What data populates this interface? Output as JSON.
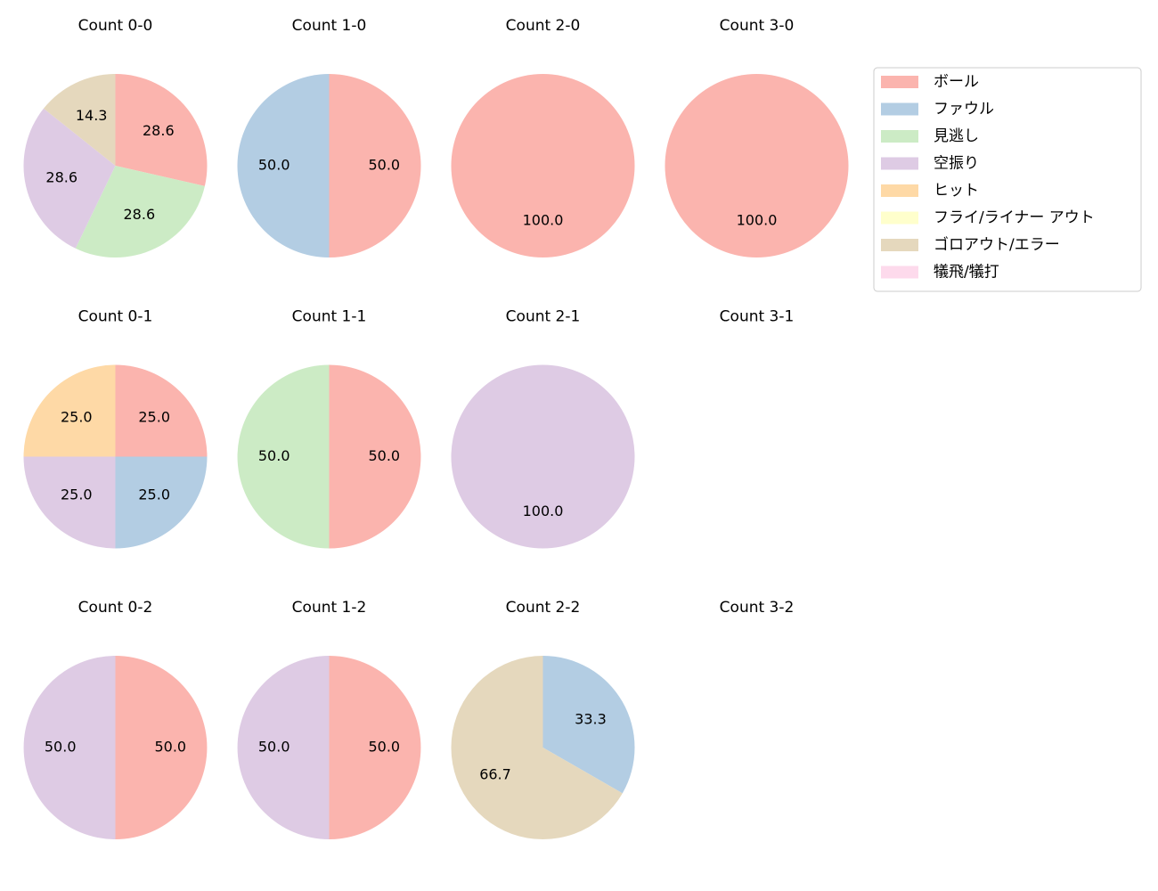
{
  "chart_data": [
    {
      "type": "pie",
      "title": "Count 0-0",
      "categories": [
        "ボール",
        "見逃し",
        "空振り",
        "ゴロアウト/エラー"
      ],
      "values": [
        28.6,
        28.6,
        28.6,
        14.3
      ],
      "value_labels": [
        "28.6",
        "28.6",
        "28.6",
        "14.3"
      ]
    },
    {
      "type": "pie",
      "title": "Count 1-0",
      "categories": [
        "ボール",
        "ファウル"
      ],
      "values": [
        50,
        50
      ],
      "value_labels": [
        "50.0",
        "50.0"
      ]
    },
    {
      "type": "pie",
      "title": "Count 2-0",
      "categories": [
        "ボール"
      ],
      "values": [
        100
      ],
      "value_labels": [
        "100.0"
      ]
    },
    {
      "type": "pie",
      "title": "Count 3-0",
      "categories": [
        "ボール"
      ],
      "values": [
        100
      ],
      "value_labels": [
        "100.0"
      ]
    },
    {
      "type": "pie",
      "title": "Count 0-1",
      "categories": [
        "ボール",
        "ファウル",
        "空振り",
        "ヒット"
      ],
      "values": [
        25,
        25,
        25,
        25
      ],
      "value_labels": [
        "25.0",
        "25.0",
        "25.0",
        "25.0"
      ]
    },
    {
      "type": "pie",
      "title": "Count 1-1",
      "categories": [
        "ボール",
        "見逃し"
      ],
      "values": [
        50,
        50
      ],
      "value_labels": [
        "50.0",
        "50.0"
      ]
    },
    {
      "type": "pie",
      "title": "Count 2-1",
      "categories": [
        "空振り"
      ],
      "values": [
        100
      ],
      "value_labels": [
        "100.0"
      ]
    },
    {
      "type": "pie",
      "title": "Count 3-1",
      "categories": [],
      "values": [],
      "value_labels": []
    },
    {
      "type": "pie",
      "title": "Count 0-2",
      "categories": [
        "ボール",
        "空振り"
      ],
      "values": [
        50,
        50
      ],
      "value_labels": [
        "50.0",
        "50.0"
      ]
    },
    {
      "type": "pie",
      "title": "Count 1-2",
      "categories": [
        "ボール",
        "空振り"
      ],
      "values": [
        50,
        50
      ],
      "value_labels": [
        "50.0",
        "50.0"
      ]
    },
    {
      "type": "pie",
      "title": "Count 2-2",
      "categories": [
        "ファウル",
        "ゴロアウト/エラー"
      ],
      "values": [
        33.3,
        66.7
      ],
      "value_labels": [
        "33.3",
        "66.7"
      ]
    },
    {
      "type": "pie",
      "title": "Count 3-2",
      "categories": [],
      "values": [],
      "value_labels": []
    }
  ],
  "legend": {
    "labels": [
      "ボール",
      "ファウル",
      "見逃し",
      "空振り",
      "ヒット",
      "フライ/ライナー アウト",
      "ゴロアウト/エラー",
      "犠飛/犠打"
    ],
    "colors": [
      "#fbb4ae",
      "#b3cde3",
      "#ccebc5",
      "#decbe4",
      "#fed9a6",
      "#ffffcc",
      "#e5d8bd",
      "#fddaec"
    ]
  }
}
